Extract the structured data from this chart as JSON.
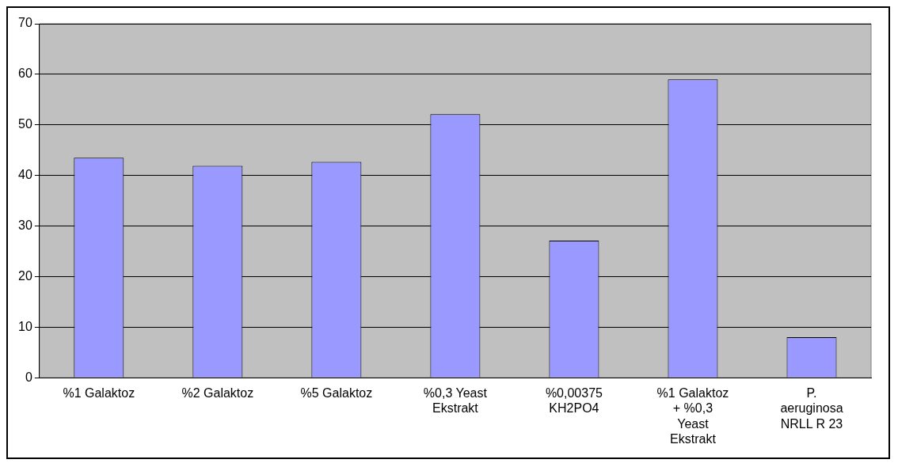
{
  "chart_data": {
    "type": "bar",
    "categories": [
      "%1 Galaktoz",
      "%2 Galaktoz",
      "%5 Galaktoz",
      "%0,3 Yeast Ekstrakt",
      "%0,00375 KH2PO4",
      "%1 Galaktoz + %0,3 Yeast Ekstrakt",
      "P. aeruginosa NRLL R 23"
    ],
    "values": [
      43.5,
      41.9,
      42.7,
      52.1,
      27.1,
      59.0,
      8.0
    ],
    "color": "#9999ff",
    "ylim": [
      0,
      70
    ],
    "yticks": [
      0,
      10,
      20,
      30,
      40,
      50,
      60,
      70
    ],
    "grid": "y",
    "legend": false
  }
}
